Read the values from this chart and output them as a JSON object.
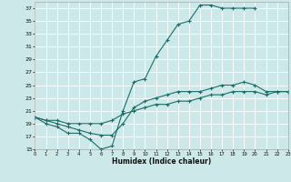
{
  "xlabel": "Humidex (Indice chaleur)",
  "bg_color": "#cce8e8",
  "grid_color": "#ffffff",
  "line_color": "#1a6e6a",
  "xlim": [
    0,
    23
  ],
  "ylim": [
    15,
    38
  ],
  "yticks": [
    15,
    17,
    19,
    21,
    23,
    25,
    27,
    29,
    31,
    33,
    35,
    37
  ],
  "xticks": [
    0,
    1,
    2,
    3,
    4,
    5,
    6,
    7,
    8,
    9,
    10,
    11,
    12,
    13,
    14,
    15,
    16,
    17,
    18,
    19,
    20,
    21,
    22,
    23
  ],
  "line1_x": [
    0,
    1,
    2,
    3,
    4,
    5,
    6,
    7,
    8,
    9,
    10,
    11,
    12,
    13,
    14,
    15,
    16,
    17,
    18,
    19,
    20
  ],
  "line1_y": [
    20,
    19,
    18.5,
    17.5,
    17.5,
    16.5,
    15,
    15.5,
    21,
    25.5,
    26,
    29.5,
    32,
    34.5,
    35,
    37.5,
    37.5,
    37,
    37,
    37,
    37
  ],
  "line2_x": [
    0,
    1,
    2,
    3,
    4,
    5,
    6,
    7,
    8,
    9,
    10,
    11,
    12,
    13,
    14,
    15,
    16,
    17,
    18,
    19,
    20,
    21,
    22,
    23
  ],
  "line2_y": [
    20,
    19.5,
    19,
    18.5,
    18,
    17.5,
    17.2,
    17.2,
    19,
    21.5,
    22.5,
    23,
    23.5,
    24,
    24,
    24,
    24.5,
    25,
    25,
    25.5,
    25,
    24,
    24,
    24
  ],
  "line3_x": [
    0,
    1,
    2,
    3,
    4,
    5,
    6,
    7,
    8,
    9,
    10,
    11,
    12,
    13,
    14,
    15,
    16,
    17,
    18,
    19,
    20,
    21,
    22,
    23
  ],
  "line3_y": [
    20,
    19.5,
    19.5,
    19,
    19,
    19,
    19,
    19.5,
    20.5,
    21,
    21.5,
    22,
    22,
    22.5,
    22.5,
    23,
    23.5,
    23.5,
    24,
    24,
    24,
    23.5,
    24,
    24
  ]
}
